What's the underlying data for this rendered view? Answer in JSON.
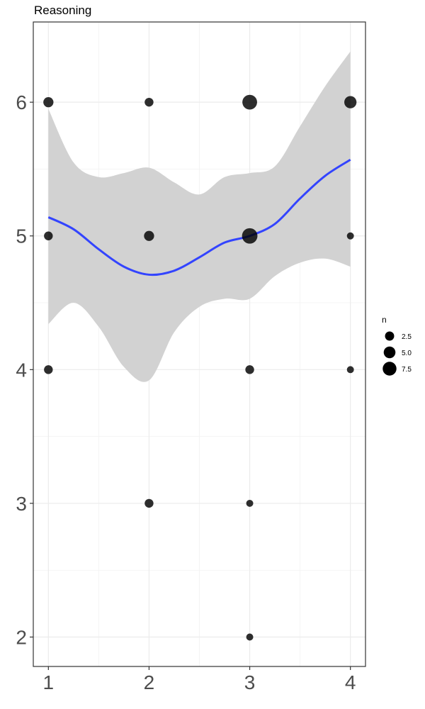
{
  "chart_data": {
    "type": "scatter",
    "title": "Reasoning",
    "xlabel": "",
    "ylabel": "",
    "xlim": [
      0.85,
      4.15
    ],
    "ylim": [
      1.78,
      6.6
    ],
    "x_ticks": [
      1,
      2,
      3,
      4
    ],
    "x_tick_labels": [
      "1",
      "2",
      "3",
      "4"
    ],
    "y_ticks": [
      2,
      3,
      4,
      5,
      6
    ],
    "y_tick_labels": [
      "2",
      "3",
      "4",
      "5",
      "6"
    ],
    "grid": true,
    "points": [
      {
        "x": 1,
        "y": 6,
        "n": 3
      },
      {
        "x": 1,
        "y": 5,
        "n": 2
      },
      {
        "x": 1,
        "y": 4,
        "n": 2
      },
      {
        "x": 2,
        "y": 6,
        "n": 2
      },
      {
        "x": 2,
        "y": 5,
        "n": 3
      },
      {
        "x": 2,
        "y": 3,
        "n": 2
      },
      {
        "x": 3,
        "y": 6,
        "n": 8
      },
      {
        "x": 3,
        "y": 5,
        "n": 9
      },
      {
        "x": 3,
        "y": 4,
        "n": 2
      },
      {
        "x": 3,
        "y": 3,
        "n": 1
      },
      {
        "x": 3,
        "y": 2,
        "n": 1
      },
      {
        "x": 4,
        "y": 6,
        "n": 5
      },
      {
        "x": 4,
        "y": 5,
        "n": 1
      },
      {
        "x": 4,
        "y": 4,
        "n": 1
      }
    ],
    "smooth": {
      "x": [
        1,
        1.25,
        1.5,
        1.75,
        2,
        2.25,
        2.5,
        2.75,
        3,
        3.25,
        3.5,
        3.75,
        4
      ],
      "fit": [
        5.14,
        5.05,
        4.9,
        4.77,
        4.71,
        4.74,
        4.84,
        4.95,
        5.0,
        5.09,
        5.28,
        5.45,
        5.57
      ],
      "upper": [
        5.95,
        5.55,
        5.44,
        5.47,
        5.51,
        5.4,
        5.31,
        5.44,
        5.47,
        5.52,
        5.82,
        6.12,
        6.38
      ],
      "lower": [
        4.34,
        4.5,
        4.32,
        4.02,
        3.92,
        4.28,
        4.47,
        4.53,
        4.53,
        4.7,
        4.8,
        4.83,
        4.77
      ]
    },
    "line_color": "#3344ff",
    "band_color": "#d2d2d2",
    "point_color": "#000000",
    "legend": {
      "title": "n",
      "placement": "right",
      "entries": [
        {
          "label": "2.5",
          "value": 2.5
        },
        {
          "label": "5.0",
          "value": 5.0
        },
        {
          "label": "7.5",
          "value": 7.5
        }
      ]
    }
  }
}
